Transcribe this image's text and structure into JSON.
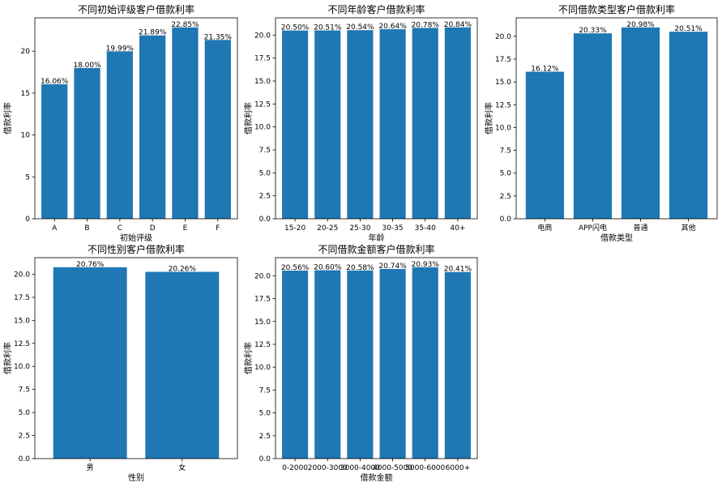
{
  "colors": {
    "bar": "#1f77b4",
    "axis": "#000000",
    "background": "#ffffff"
  },
  "chart_data": [
    {
      "type": "bar",
      "title": "不同初始评级客户借款利率",
      "xlabel": "初始评级",
      "ylabel": "借款利率",
      "categories": [
        "A",
        "B",
        "C",
        "D",
        "E",
        "F"
      ],
      "values": [
        16.06,
        18.0,
        19.99,
        21.89,
        22.85,
        21.35
      ],
      "value_labels": [
        "16.06%",
        "18.00%",
        "19.99%",
        "21.89%",
        "22.85%",
        "21.35%"
      ],
      "ylim": [
        0,
        23.99
      ],
      "yticks": [
        0,
        5,
        10,
        15,
        20
      ],
      "ytick_labels": [
        "0",
        "5",
        "10",
        "15",
        "20"
      ],
      "grid": false
    },
    {
      "type": "bar",
      "title": "不同年龄客户借款利率",
      "xlabel": "年龄",
      "ylabel": "借款利率",
      "categories": [
        "15-20",
        "20-25",
        "25-30",
        "30-35",
        "35-40",
        "40+"
      ],
      "values": [
        20.5,
        20.51,
        20.54,
        20.64,
        20.78,
        20.84
      ],
      "value_labels": [
        "20.50%",
        "20.51%",
        "20.54%",
        "20.64%",
        "20.78%",
        "20.84%"
      ],
      "ylim": [
        0,
        21.88
      ],
      "yticks": [
        0,
        2.5,
        5,
        7.5,
        10,
        12.5,
        15,
        17.5,
        20
      ],
      "ytick_labels": [
        "0.0",
        "2.5",
        "5.0",
        "7.5",
        "10.0",
        "12.5",
        "15.0",
        "17.5",
        "20.0"
      ],
      "grid": false
    },
    {
      "type": "bar",
      "title": "不同借款类型客户借款利率",
      "xlabel": "借款类型",
      "ylabel": "借款利率",
      "categories": [
        "电商",
        "APP闪电",
        "普通",
        "其他"
      ],
      "values": [
        16.12,
        20.33,
        20.98,
        20.51
      ],
      "value_labels": [
        "16.12%",
        "20.33%",
        "20.98%",
        "20.51%"
      ],
      "ylim": [
        0,
        22.03
      ],
      "yticks": [
        0,
        2.5,
        5,
        7.5,
        10,
        12.5,
        15,
        17.5,
        20
      ],
      "ytick_labels": [
        "0.0",
        "2.5",
        "5.0",
        "7.5",
        "10.0",
        "12.5",
        "15.0",
        "17.5",
        "20.0"
      ],
      "grid": false
    },
    {
      "type": "bar",
      "title": "不同性别客户借款利率",
      "xlabel": "性别",
      "ylabel": "借款利率",
      "categories": [
        "男",
        "女"
      ],
      "values": [
        20.76,
        20.26
      ],
      "value_labels": [
        "20.76%",
        "20.26%"
      ],
      "ylim": [
        0,
        21.8
      ],
      "yticks": [
        0,
        2.5,
        5,
        7.5,
        10,
        12.5,
        15,
        17.5,
        20
      ],
      "ytick_labels": [
        "0.0",
        "2.5",
        "5.0",
        "7.5",
        "10.0",
        "12.5",
        "15.0",
        "17.5",
        "20.0"
      ],
      "grid": false
    },
    {
      "type": "bar",
      "title": "不同借款金额客户借款利率",
      "xlabel": "借款金额",
      "ylabel": "借款利率",
      "categories": [
        "0-2000",
        "2000-3000",
        "3000-4000",
        "4000-5000",
        "5000-6000",
        "6000+"
      ],
      "values": [
        20.56,
        20.6,
        20.58,
        20.74,
        20.93,
        20.41
      ],
      "value_labels": [
        "20.56%",
        "20.60%",
        "20.58%",
        "20.74%",
        "20.93%",
        "20.41%"
      ],
      "ylim": [
        0,
        21.98
      ],
      "yticks": [
        0,
        2.5,
        5,
        7.5,
        10,
        12.5,
        15,
        17.5,
        20
      ],
      "ytick_labels": [
        "0.0",
        "2.5",
        "5.0",
        "7.5",
        "10.0",
        "12.5",
        "15.0",
        "17.5",
        "20.0"
      ],
      "grid": false
    }
  ]
}
